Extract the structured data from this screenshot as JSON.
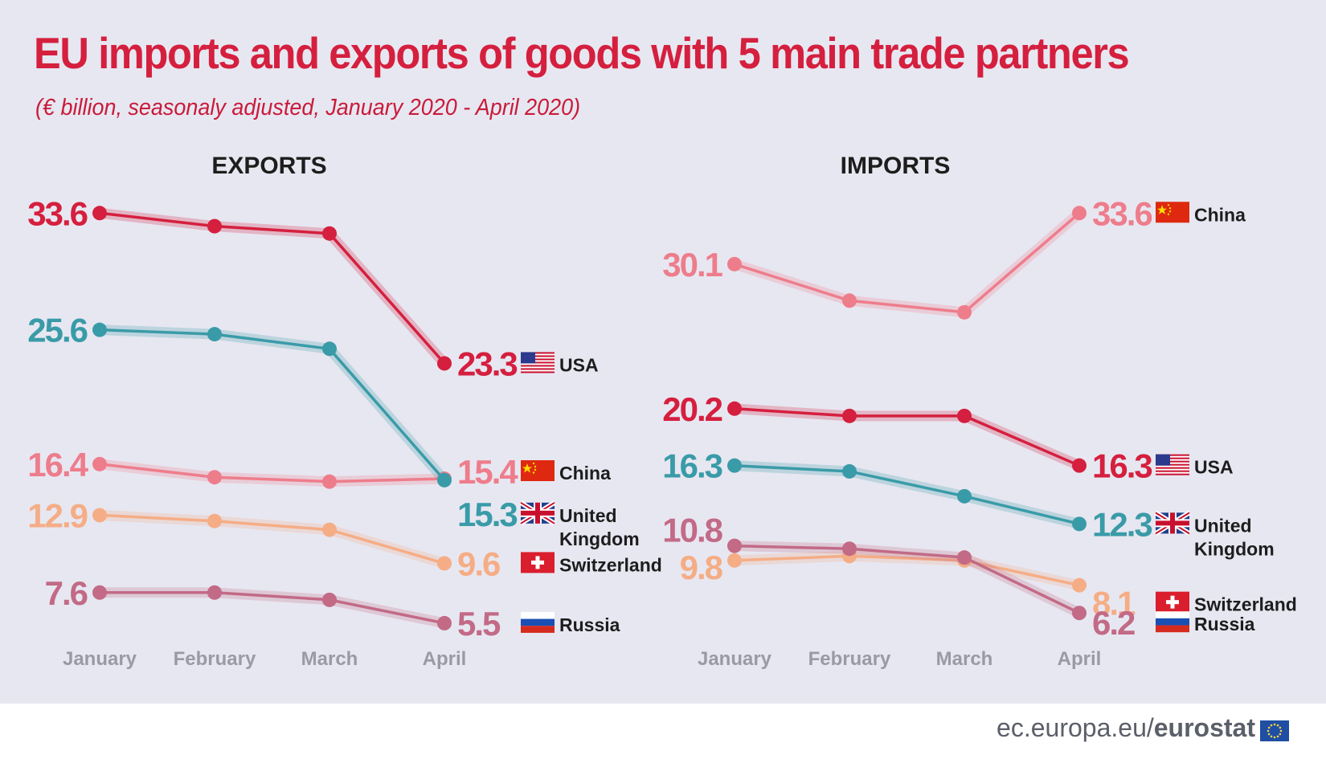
{
  "title": "EU imports and exports of goods with 5 main trade partners",
  "subtitle": "(€ billion, seasonaly adjusted, January 2020 - April 2020)",
  "footer": {
    "domain": "ec.europa.eu/",
    "brand": "eurostat"
  },
  "chart_data": [
    {
      "type": "line",
      "title": "EXPORTS",
      "categories": [
        "January",
        "February",
        "March",
        "April"
      ],
      "ylim": [
        5,
        34
      ],
      "series": [
        {
          "name": "USA",
          "values": [
            33.6,
            32.7,
            32.2,
            23.3
          ],
          "first_label": "33.6",
          "last_label": "23.3",
          "color": "#d51f3e",
          "flag": "usa"
        },
        {
          "name": "China",
          "values": [
            16.4,
            15.5,
            15.2,
            15.4
          ],
          "first_label": "16.4",
          "last_label": "15.4",
          "color": "#ee7d8c",
          "flag": "china"
        },
        {
          "name": "United Kingdom",
          "values": [
            25.6,
            25.3,
            24.3,
            15.3
          ],
          "first_label": "25.6",
          "last_label": "15.3",
          "color": "#3a9ba8",
          "flag": "uk"
        },
        {
          "name": "Switzerland",
          "values": [
            12.9,
            12.5,
            11.9,
            9.6
          ],
          "first_label": "12.9",
          "last_label": "9.6",
          "color": "#f5ad86",
          "flag": "switzerland"
        },
        {
          "name": "Russia",
          "values": [
            7.6,
            7.6,
            7.1,
            5.5
          ],
          "first_label": "7.6",
          "last_label": "5.5",
          "color": "#c26a86",
          "flag": "russia"
        }
      ]
    },
    {
      "type": "line",
      "title": "IMPORTS",
      "categories": [
        "January",
        "February",
        "March",
        "April"
      ],
      "ylim": [
        5,
        34
      ],
      "series": [
        {
          "name": "China",
          "values": [
            30.1,
            27.6,
            26.8,
            33.6
          ],
          "first_label": "30.1",
          "last_label": "33.6",
          "color": "#ee7d8c",
          "flag": "china"
        },
        {
          "name": "USA",
          "values": [
            20.2,
            19.7,
            19.7,
            16.3
          ],
          "first_label": "20.2",
          "last_label": "16.3",
          "color": "#d51f3e",
          "flag": "usa"
        },
        {
          "name": "United Kingdom",
          "values": [
            16.3,
            15.9,
            14.2,
            12.3
          ],
          "first_label": "16.3",
          "last_label": "12.3",
          "color": "#3a9ba8",
          "flag": "uk"
        },
        {
          "name": "Switzerland",
          "values": [
            9.8,
            10.1,
            9.8,
            8.1
          ],
          "first_label": "9.8",
          "last_label": "8.1",
          "color": "#f5ad86",
          "flag": "switzerland"
        },
        {
          "name": "Russia",
          "values": [
            10.8,
            10.6,
            10.0,
            6.2
          ],
          "first_label": "10.8",
          "last_label": "6.2",
          "color": "#c26a86",
          "flag": "russia"
        }
      ]
    }
  ]
}
